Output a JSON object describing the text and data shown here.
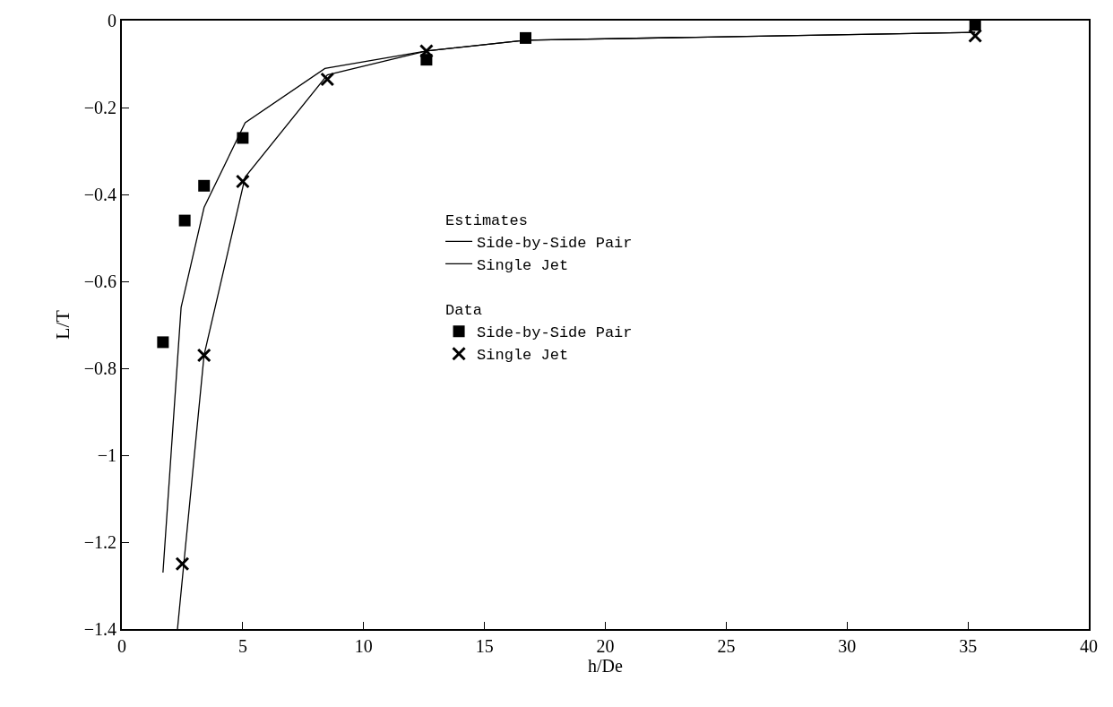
{
  "chart_data": {
    "type": "line",
    "xlabel": "h/De",
    "ylabel": "L/T",
    "xlim": [
      0,
      40
    ],
    "xticks": [
      0,
      5,
      10,
      15,
      20,
      25,
      30,
      35,
      40
    ],
    "ylim": [
      -1.4,
      0
    ],
    "yticks": [
      {
        "value": 0,
        "label": "0"
      },
      {
        "value": -0.2,
        "label": "−0.2"
      },
      {
        "value": -0.4,
        "label": "−0.4"
      },
      {
        "value": -0.6,
        "label": "−0.6"
      },
      {
        "value": -0.8,
        "label": "−0.8"
      },
      {
        "value": -1,
        "label": "−1"
      },
      {
        "value": -1.2,
        "label": "−1.2"
      },
      {
        "value": -1.4,
        "label": "−1.4"
      }
    ],
    "legend": "center",
    "legend_title": "Estimates",
    "annotations": [
      "Data"
    ],
    "series": [
      {
        "name": "Side-by-Side Pair",
        "color": "#000000",
        "marker": "none",
        "x": [
          1.7,
          2.45,
          3.4,
          5.1,
          8.4,
          12.6,
          16.7,
          35.3
        ],
        "values": [
          -1.27,
          -0.66,
          -0.43,
          -0.235,
          -0.11,
          -0.07,
          -0.045,
          -0.027
        ]
      },
      {
        "name": "Single Jet",
        "color": "#000000",
        "marker": "none",
        "x": [
          2.3,
          3.4,
          5.1,
          8.5,
          12.6,
          16.7,
          35.3
        ],
        "values": [
          -1.4,
          -0.77,
          -0.36,
          -0.125,
          -0.07,
          -0.045,
          -0.027
        ]
      },
      {
        "type": "scatter",
        "name": "Side-by-Side Pair",
        "color": "#000000",
        "marker": "square",
        "x": [
          1.7,
          2.6,
          3.4,
          5.0,
          12.6,
          16.7,
          35.3
        ],
        "values": [
          -0.74,
          -0.46,
          -0.38,
          -0.27,
          -0.09,
          -0.04,
          -0.01
        ]
      },
      {
        "type": "scatter",
        "name": "Single Jet",
        "color": "#000000",
        "marker": "cross",
        "x": [
          2.5,
          3.4,
          5.0,
          8.5,
          12.6,
          35.3
        ],
        "values": [
          -1.25,
          -0.77,
          -0.37,
          -0.135,
          -0.07,
          -0.035
        ]
      }
    ]
  }
}
